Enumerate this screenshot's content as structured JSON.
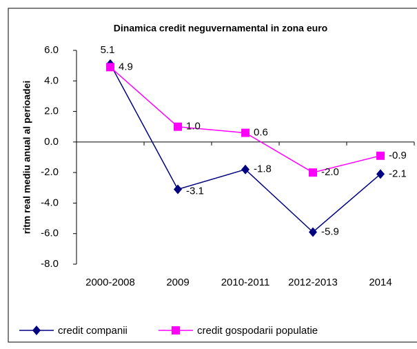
{
  "chart_data": {
    "type": "line",
    "title": "Dinamica credit neguvernamental in zona euro",
    "ylabel": "ritm real mediu anual al perioadei",
    "categories": [
      "2000-2008",
      "2009",
      "2010-2011",
      "2012-2013",
      "2014"
    ],
    "series": [
      {
        "name": "credit companii",
        "color": "#000080",
        "marker": "diamond",
        "values": [
          5.1,
          -3.1,
          -1.8,
          -5.9,
          -2.1
        ],
        "value_labels": [
          "5.1",
          "-3.1",
          "-1.8",
          "-5.9",
          "-2.1"
        ]
      },
      {
        "name": "credit gospodarii populatie",
        "color": "#ff00ff",
        "marker": "square",
        "values": [
          4.9,
          1.0,
          0.6,
          -2.0,
          -0.9
        ],
        "value_labels": [
          "4.9",
          "1.0",
          "0.6",
          "-2.0",
          "-0.9"
        ]
      }
    ],
    "ylim": [
      -8,
      6
    ],
    "yticks": [
      {
        "value": 6,
        "label": "6.0"
      },
      {
        "value": 4,
        "label": "4.0"
      },
      {
        "value": 2,
        "label": "2.0"
      },
      {
        "value": 0,
        "label": "0.0"
      },
      {
        "value": -2,
        "label": "-2.0"
      },
      {
        "value": -4,
        "label": "-4.0"
      },
      {
        "value": -6,
        "label": "-6.0"
      },
      {
        "value": -8,
        "label": "-8.0"
      }
    ],
    "legend": "bottom"
  }
}
